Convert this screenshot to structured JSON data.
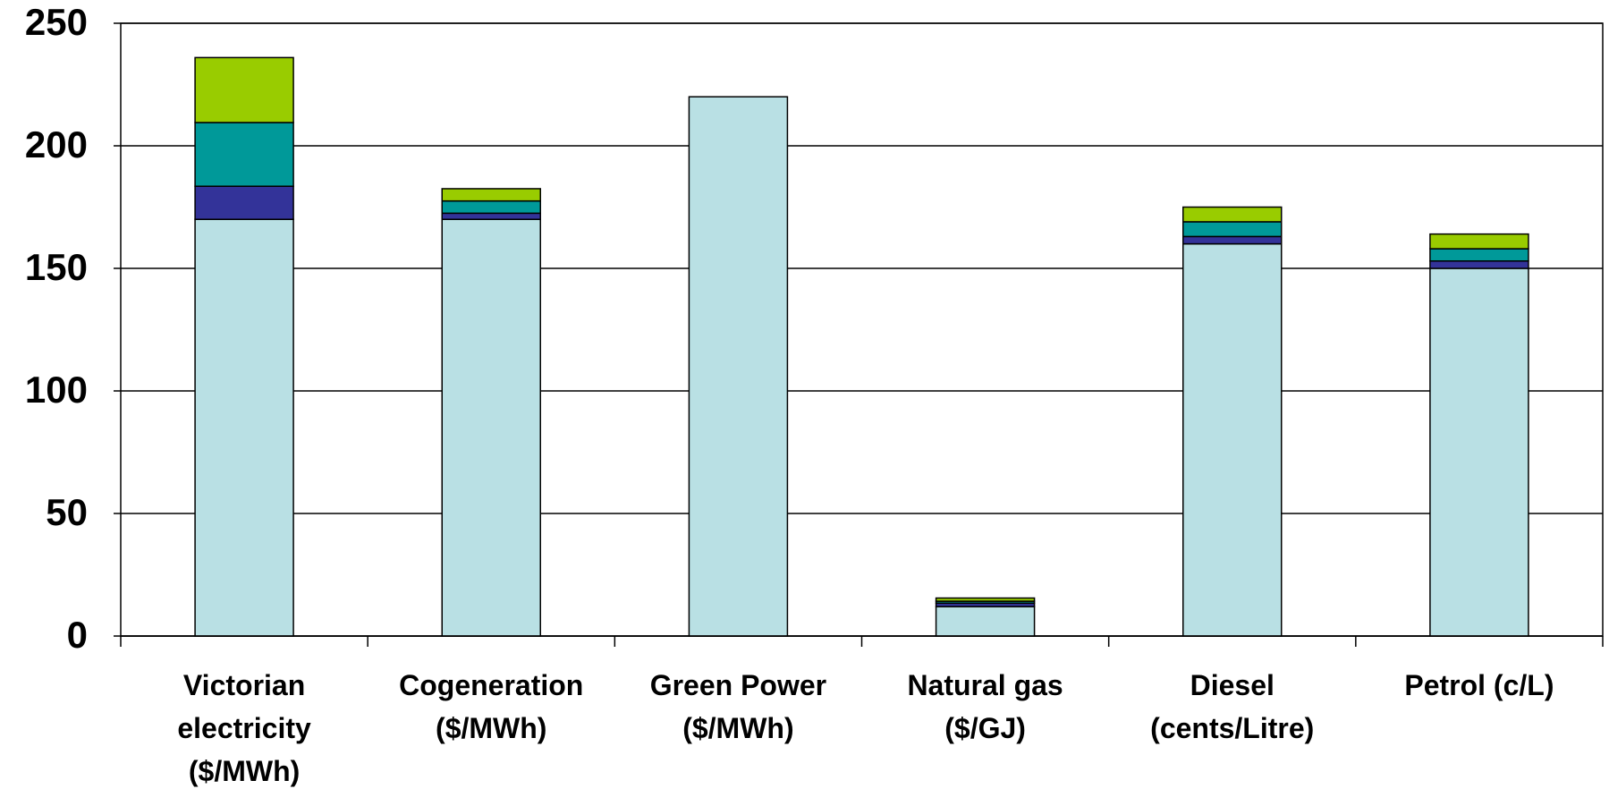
{
  "chart_data": {
    "type": "stacked_bar",
    "categories": [
      "Victorian\nelectricity\n($/MWh)",
      "Cogeneration\n($/MWh)",
      "Green Power\n($/MWh)",
      "Natural gas\n($/GJ)",
      "Diesel\n(cents/Litre)",
      "Petrol (c/L)"
    ],
    "series": [
      {
        "color": "#b9e0e4",
        "values": [
          170,
          170,
          220,
          12,
          160,
          150
        ]
      },
      {
        "color": "#333399",
        "values": [
          13.5,
          2.5,
          0,
          1.4,
          3,
          3
        ]
      },
      {
        "color": "#009999",
        "values": [
          26,
          5,
          0,
          0.8,
          6,
          5
        ]
      },
      {
        "color": "#99cc00",
        "values": [
          26.5,
          5,
          0,
          1.3,
          6,
          6
        ]
      }
    ],
    "ylim": [
      0,
      250
    ],
    "yticks": [
      0,
      50,
      100,
      150,
      200,
      250
    ],
    "grid": true
  }
}
